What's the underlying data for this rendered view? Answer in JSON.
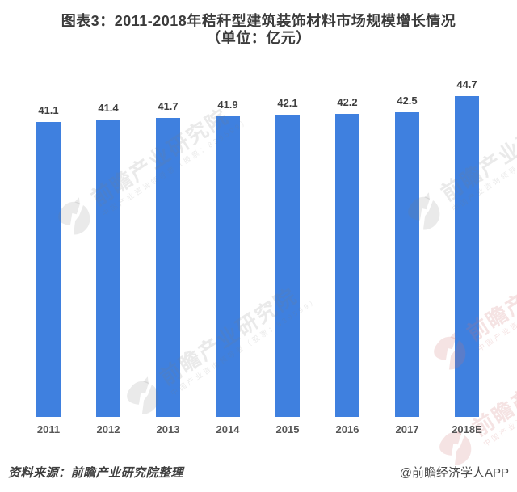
{
  "figure": {
    "background": "#ffffff"
  },
  "chart_data": {
    "type": "bar",
    "title": "图表3：2011-2018年秸秆型建筑装饰材料市场规模增长情况（单位：亿元）",
    "title_line1": "图表3：2011-2018年秸秆型建筑装饰材料市场规模增长情况",
    "title_line2": "（单位：亿元）",
    "unit": "亿元",
    "categories": [
      "2011",
      "2012",
      "2013",
      "2014",
      "2015",
      "2016",
      "2017",
      "2018E"
    ],
    "values": [
      41.1,
      41.4,
      41.7,
      41.9,
      42.1,
      42.2,
      42.5,
      44.7
    ],
    "value_labels": [
      "41.1",
      "41.4",
      "41.7",
      "41.9",
      "42.1",
      "42.2",
      "42.5",
      "44.7"
    ],
    "bar_color": "#3f80df",
    "value_label_color": "#3f3f3f",
    "tick_label_color": "#575757",
    "xlabel": "",
    "ylabel": "",
    "y_axis_visible": false,
    "gridlines": false,
    "legend": null,
    "ylim": [
      0,
      45
    ]
  },
  "watermark": {
    "logo": "qianzhan-logo",
    "text_main": "前瞻产业研究院",
    "text_sub": "中国产业咨询领导者（股票：839599）",
    "color_gray": "rgba(125,125,125,0.16)",
    "color_pink": "rgba(205,115,115,0.20)"
  },
  "footer": {
    "source": "资料来源：前瞻产业研究院整理",
    "credit": "@前瞻经济学人APP"
  }
}
